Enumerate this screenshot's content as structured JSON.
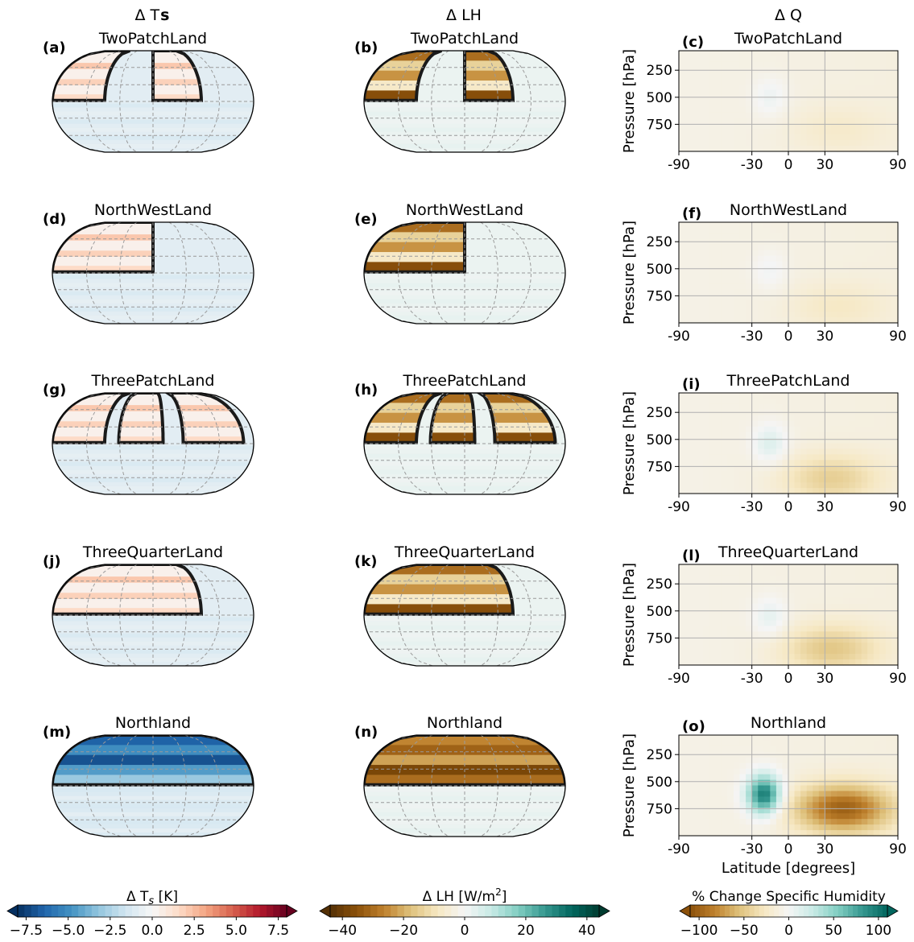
{
  "column_headers": {
    "ts": "Δ Ts",
    "ts_base": "Δ T",
    "ts_sub": "s",
    "lh": "Δ LH",
    "q": "Δ Q"
  },
  "rows": [
    {
      "title": "TwoPatchLand",
      "labels": [
        "(a)",
        "(b)",
        "(c)"
      ]
    },
    {
      "title": "NorthWestLand",
      "labels": [
        "(d)",
        "(e)",
        "(f)"
      ]
    },
    {
      "title": "ThreePatchLand",
      "labels": [
        "(g)",
        "(h)",
        "(i)"
      ]
    },
    {
      "title": "ThreeQuarterLand",
      "labels": [
        "(j)",
        "(k)",
        "(l)"
      ]
    },
    {
      "title": "Northland",
      "labels": [
        "(m)",
        "(n)",
        "(o)"
      ]
    }
  ],
  "colorbars": {
    "ts": {
      "label": "Δ Ts [K]",
      "label_base": "Δ T",
      "label_sub": "s",
      "label_unit": " [K]",
      "ticks": [
        "−7.5",
        "−5.0",
        "−2.5",
        "0.0",
        "2.5",
        "5.0",
        "7.5"
      ],
      "range": [
        -8,
        8
      ],
      "colors": [
        "#053061",
        "#2166ac",
        "#4393c3",
        "#92c5de",
        "#d1e5f0",
        "#f7f7f7",
        "#fddbc7",
        "#f4a582",
        "#d6604d",
        "#b2182b",
        "#67001f"
      ]
    },
    "lh": {
      "label": "Δ LH [W/m²]",
      "label_base": "Δ LH [W/m",
      "label_sup": "2",
      "label_end": "]",
      "ticks": [
        "−40",
        "−20",
        "0",
        "20",
        "40"
      ],
      "range": [
        -44,
        44
      ],
      "colors": [
        "#543005",
        "#8c510a",
        "#bf812d",
        "#dfc27d",
        "#f6e8c3",
        "#f5f5f5",
        "#c7eae5",
        "#80cdc1",
        "#35978f",
        "#01665e",
        "#003c30"
      ]
    },
    "q": {
      "label": "% Change Specific Humidity",
      "ticks": [
        "−100",
        "−50",
        "0",
        "50",
        "100"
      ],
      "range": [
        -110,
        110
      ],
      "colors": [
        "#8c510a",
        "#bf812d",
        "#dfc27d",
        "#f6e8c3",
        "#f5f5f5",
        "#c7eae5",
        "#80cdc1",
        "#35978f",
        "#01665e"
      ]
    }
  },
  "chart_data": [
    {
      "type": "heatmap",
      "panel": "(c)",
      "title": "TwoPatchLand",
      "xlabel": "",
      "ylabel": "Pressure [hPa]",
      "xticks": [
        "-90",
        "-30",
        "0",
        "30",
        "90"
      ],
      "yticks": [
        "250",
        "500",
        "750"
      ],
      "xlim": [
        -90,
        90
      ],
      "ylim": [
        1000,
        70
      ],
      "grid": true,
      "features": [
        {
          "kind": "moist",
          "lat": -15,
          "p": 500,
          "value": 15
        },
        {
          "kind": "dry",
          "lat": 40,
          "p": 800,
          "value": -12
        }
      ]
    },
    {
      "type": "heatmap",
      "panel": "(f)",
      "title": "NorthWestLand",
      "xlabel": "",
      "ylabel": "Pressure [hPa]",
      "xticks": [
        "-90",
        "-30",
        "0",
        "30",
        "90"
      ],
      "yticks": [
        "250",
        "500",
        "750"
      ],
      "xlim": [
        -90,
        90
      ],
      "ylim": [
        1000,
        70
      ],
      "grid": true,
      "features": [
        {
          "kind": "moist",
          "lat": -15,
          "p": 520,
          "value": 12
        },
        {
          "kind": "dry",
          "lat": 40,
          "p": 850,
          "value": -15
        }
      ]
    },
    {
      "type": "heatmap",
      "panel": "(i)",
      "title": "ThreePatchLand",
      "xlabel": "",
      "ylabel": "Pressure [hPa]",
      "xticks": [
        "-90",
        "-30",
        "0",
        "30",
        "90"
      ],
      "yticks": [
        "250",
        "500",
        "750"
      ],
      "xlim": [
        -90,
        90
      ],
      "ylim": [
        1000,
        70
      ],
      "grid": true,
      "features": [
        {
          "kind": "moist",
          "lat": -15,
          "p": 540,
          "value": 25
        },
        {
          "kind": "dry",
          "lat": 35,
          "p": 860,
          "value": -35
        }
      ]
    },
    {
      "type": "heatmap",
      "panel": "(l)",
      "title": "ThreeQuarterLand",
      "xlabel": "",
      "ylabel": "Pressure [hPa]",
      "xticks": [
        "-90",
        "-30",
        "0",
        "30",
        "90"
      ],
      "yticks": [
        "250",
        "500",
        "750"
      ],
      "xlim": [
        -90,
        90
      ],
      "ylim": [
        1000,
        70
      ],
      "grid": true,
      "features": [
        {
          "kind": "moist",
          "lat": -15,
          "p": 560,
          "value": 20
        },
        {
          "kind": "dry",
          "lat": 35,
          "p": 850,
          "value": -40
        }
      ]
    },
    {
      "type": "heatmap",
      "panel": "(o)",
      "title": "Northland",
      "xlabel": "Latitude [degrees]",
      "ylabel": "Pressure [hPa]",
      "xticks": [
        "-90",
        "-30",
        "0",
        "30",
        "90"
      ],
      "yticks": [
        "250",
        "500",
        "750"
      ],
      "xlim": [
        -90,
        90
      ],
      "ylim": [
        1000,
        70
      ],
      "grid": true,
      "features": [
        {
          "kind": "moist",
          "lat": -20,
          "p": 620,
          "value": 110
        },
        {
          "kind": "dry",
          "lat": 45,
          "p": 750,
          "value": -90
        }
      ]
    }
  ]
}
